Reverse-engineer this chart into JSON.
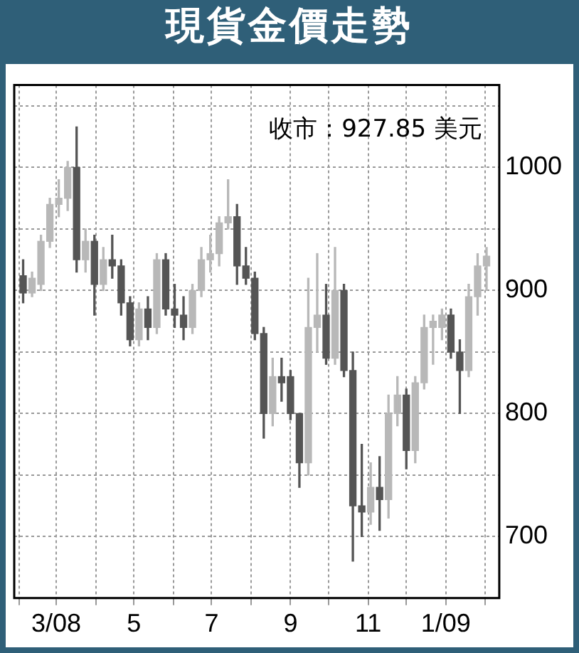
{
  "chart_data": {
    "type": "candlestick",
    "title": "現貨金價走勢",
    "annotations": [
      "收市：927.85 美元"
    ],
    "x": [
      "2008-02-04",
      "2008-02-11",
      "2008-02-18",
      "2008-02-25",
      "2008-03-03",
      "2008-03-10",
      "2008-03-17",
      "2008-03-24",
      "2008-03-31",
      "2008-04-07",
      "2008-04-14",
      "2008-04-21",
      "2008-04-28",
      "2008-05-05",
      "2008-05-12",
      "2008-05-19",
      "2008-05-26",
      "2008-06-02",
      "2008-06-09",
      "2008-06-16",
      "2008-06-23",
      "2008-06-30",
      "2008-07-07",
      "2008-07-14",
      "2008-07-21",
      "2008-07-28",
      "2008-08-04",
      "2008-08-11",
      "2008-08-18",
      "2008-08-25",
      "2008-09-01",
      "2008-09-08",
      "2008-09-15",
      "2008-09-22",
      "2008-09-29",
      "2008-10-06",
      "2008-10-13",
      "2008-10-20",
      "2008-10-27",
      "2008-11-03",
      "2008-11-10",
      "2008-11-17",
      "2008-11-24",
      "2008-12-01",
      "2008-12-08",
      "2008-12-15",
      "2008-12-22",
      "2008-12-29",
      "2009-01-05",
      "2009-01-12",
      "2009-01-19",
      "2009-01-26",
      "2009-02-02"
    ],
    "ohlc": [
      [
        912,
        925,
        890,
        898
      ],
      [
        898,
        915,
        895,
        910
      ],
      [
        905,
        945,
        900,
        940
      ],
      [
        940,
        975,
        935,
        970
      ],
      [
        970,
        990,
        960,
        975
      ],
      [
        975,
        1005,
        965,
        1000
      ],
      [
        1000,
        1033,
        915,
        925
      ],
      [
        925,
        950,
        915,
        940
      ],
      [
        940,
        945,
        880,
        905
      ],
      [
        905,
        935,
        900,
        925
      ],
      [
        925,
        945,
        910,
        920
      ],
      [
        920,
        925,
        880,
        890
      ],
      [
        890,
        895,
        855,
        860
      ],
      [
        860,
        890,
        855,
        885
      ],
      [
        885,
        895,
        860,
        870
      ],
      [
        870,
        930,
        865,
        925
      ],
      [
        925,
        930,
        880,
        885
      ],
      [
        885,
        905,
        870,
        880
      ],
      [
        880,
        895,
        860,
        870
      ],
      [
        870,
        905,
        865,
        900
      ],
      [
        900,
        935,
        895,
        925
      ],
      [
        925,
        945,
        915,
        930
      ],
      [
        930,
        960,
        920,
        955
      ],
      [
        955,
        990,
        950,
        960
      ],
      [
        960,
        970,
        905,
        920
      ],
      [
        920,
        935,
        905,
        910
      ],
      [
        910,
        915,
        860,
        865
      ],
      [
        865,
        870,
        780,
        800
      ],
      [
        800,
        845,
        790,
        830
      ],
      [
        830,
        845,
        810,
        825
      ],
      [
        830,
        835,
        795,
        800
      ],
      [
        800,
        800,
        740,
        760
      ],
      [
        760,
        910,
        750,
        870
      ],
      [
        870,
        930,
        850,
        880
      ],
      [
        880,
        905,
        840,
        845
      ],
      [
        845,
        935,
        840,
        900
      ],
      [
        900,
        905,
        830,
        835
      ],
      [
        835,
        850,
        680,
        725
      ],
      [
        725,
        775,
        700,
        720
      ],
      [
        720,
        760,
        710,
        740
      ],
      [
        740,
        765,
        705,
        730
      ],
      [
        730,
        815,
        715,
        800
      ],
      [
        800,
        830,
        790,
        815
      ],
      [
        815,
        820,
        755,
        770
      ],
      [
        770,
        830,
        760,
        825
      ],
      [
        825,
        880,
        820,
        870
      ],
      [
        870,
        880,
        840,
        875
      ],
      [
        870,
        885,
        860,
        880
      ],
      [
        880,
        885,
        845,
        850
      ],
      [
        850,
        860,
        800,
        835
      ],
      [
        835,
        905,
        830,
        895
      ],
      [
        895,
        930,
        880,
        920
      ],
      [
        920,
        935,
        900,
        927.85
      ]
    ],
    "colors": [
      "#555555",
      "#b8b8b8",
      "#b8b8b8",
      "#b8b8b8",
      "#b8b8b8",
      "#b8b8b8",
      "#555555",
      "#b8b8b8",
      "#555555",
      "#b8b8b8",
      "#555555",
      "#555555",
      "#555555",
      "#b8b8b8",
      "#555555",
      "#b8b8b8",
      "#555555",
      "#555555",
      "#555555",
      "#b8b8b8",
      "#b8b8b8",
      "#b8b8b8",
      "#b8b8b8",
      "#b8b8b8",
      "#555555",
      "#555555",
      "#555555",
      "#555555",
      "#b8b8b8",
      "#555555",
      "#555555",
      "#555555",
      "#b8b8b8",
      "#b8b8b8",
      "#555555",
      "#b8b8b8",
      "#555555",
      "#555555",
      "#555555",
      "#b8b8b8",
      "#555555",
      "#b8b8b8",
      "#b8b8b8",
      "#555555",
      "#b8b8b8",
      "#b8b8b8",
      "#b8b8b8",
      "#b8b8b8",
      "#555555",
      "#555555",
      "#b8b8b8",
      "#b8b8b8",
      "#b8b8b8"
    ],
    "xlim": [
      "2008-01-28",
      "2009-02-12"
    ],
    "xticks": [
      {
        "value": "2008-02-01",
        "label": null
      },
      {
        "value": "2008-03-01",
        "label": "3/08"
      },
      {
        "value": "2008-04-01",
        "label": null
      },
      {
        "value": "2008-05-01",
        "label": "5"
      },
      {
        "value": "2008-06-01",
        "label": null
      },
      {
        "value": "2008-07-01",
        "label": "7"
      },
      {
        "value": "2008-08-01",
        "label": null
      },
      {
        "value": "2008-09-01",
        "label": "9"
      },
      {
        "value": "2008-10-01",
        "label": null
      },
      {
        "value": "2008-11-01",
        "label": "11"
      },
      {
        "value": "2008-12-01",
        "label": null
      },
      {
        "value": "2009-01-01",
        "label": "1/09"
      },
      {
        "value": "2009-02-01",
        "label": null
      }
    ],
    "ylim": [
      650,
      1067
    ],
    "yticks": [
      {
        "value": 650,
        "label": null
      },
      700,
      {
        "value": 750,
        "label": null
      },
      800,
      {
        "value": 850,
        "label": null
      },
      900,
      {
        "value": 950,
        "label": null
      },
      1000,
      {
        "value": 1050,
        "label": null
      }
    ],
    "grid": true,
    "legend": false
  }
}
